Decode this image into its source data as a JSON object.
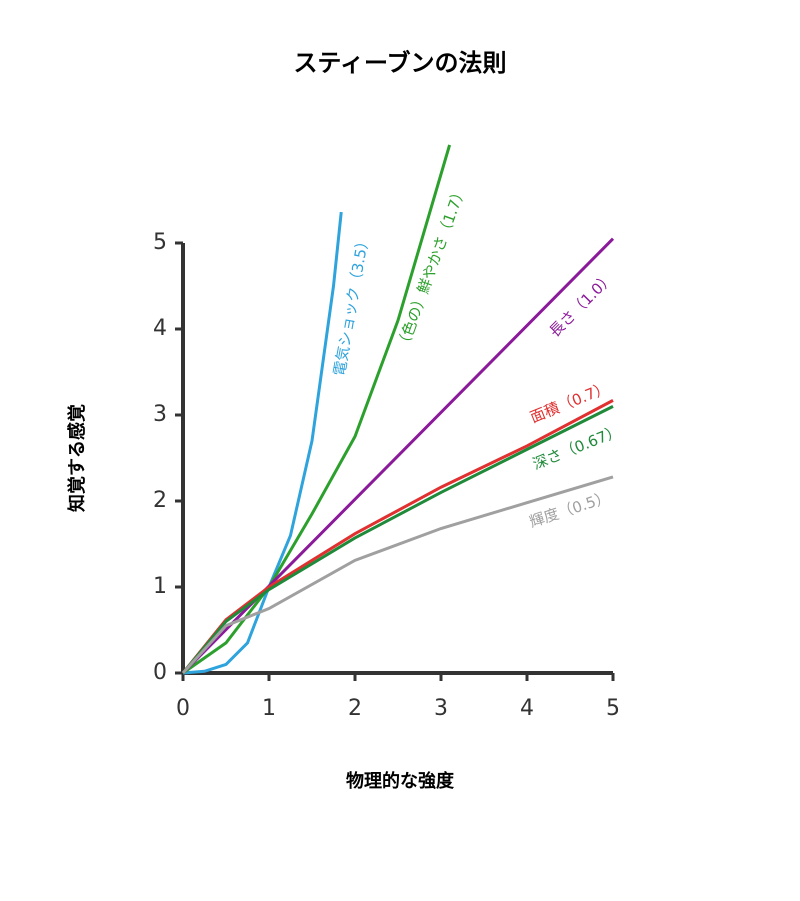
{
  "chart_data": {
    "type": "line",
    "title": "スティーブンの法則",
    "x_label": "物理的な強度",
    "y_label": "知覚する感覚",
    "xlim": [
      0,
      5
    ],
    "ylim": [
      0,
      5
    ],
    "xticks": [
      0,
      1,
      2,
      3,
      4,
      5
    ],
    "yticks": [
      0,
      1,
      2,
      3,
      4,
      5
    ],
    "grid": false,
    "series": [
      {
        "name": "電気ショック（3.5）",
        "color": "#2ea3dc",
        "x": [
          0,
          0.25,
          0.5,
          0.75,
          1,
          1.25,
          1.5,
          1.75,
          1.84
        ],
        "values": [
          0,
          0.02,
          0.1,
          0.35,
          1,
          1.6,
          2.7,
          4.5,
          5.36
        ]
      },
      {
        "name": "（色の）鮮やかさ（1.7）",
        "color": "#2ca02c",
        "x": [
          0,
          0.5,
          1,
          1.5,
          2,
          2.5,
          3.1
        ],
        "values": [
          0,
          0.35,
          1,
          1.85,
          2.75,
          4.1,
          6.14
        ]
      },
      {
        "name": "長さ（1.0）",
        "color": "#8b1a9a",
        "x": [
          0,
          5
        ],
        "values": [
          0,
          5.05
        ]
      },
      {
        "name": "面積（0.7）",
        "color": "#e03030",
        "x": [
          0,
          0.5,
          1,
          2,
          3,
          4,
          5
        ],
        "values": [
          0,
          0.62,
          1,
          1.62,
          2.16,
          2.64,
          3.17
        ]
      },
      {
        "name": "深さ（0.67）",
        "color": "#1f8a3a",
        "x": [
          0,
          0.5,
          1,
          2,
          3,
          4,
          5
        ],
        "values": [
          0,
          0.6,
          0.97,
          1.57,
          2.1,
          2.6,
          3.1
        ]
      },
      {
        "name": "輝度（0.5）",
        "color": "#a0a0a0",
        "x": [
          0,
          0.5,
          1,
          2,
          3,
          4,
          5
        ],
        "values": [
          0,
          0.55,
          0.75,
          1.31,
          1.68,
          1.98,
          2.28
        ]
      }
    ]
  }
}
